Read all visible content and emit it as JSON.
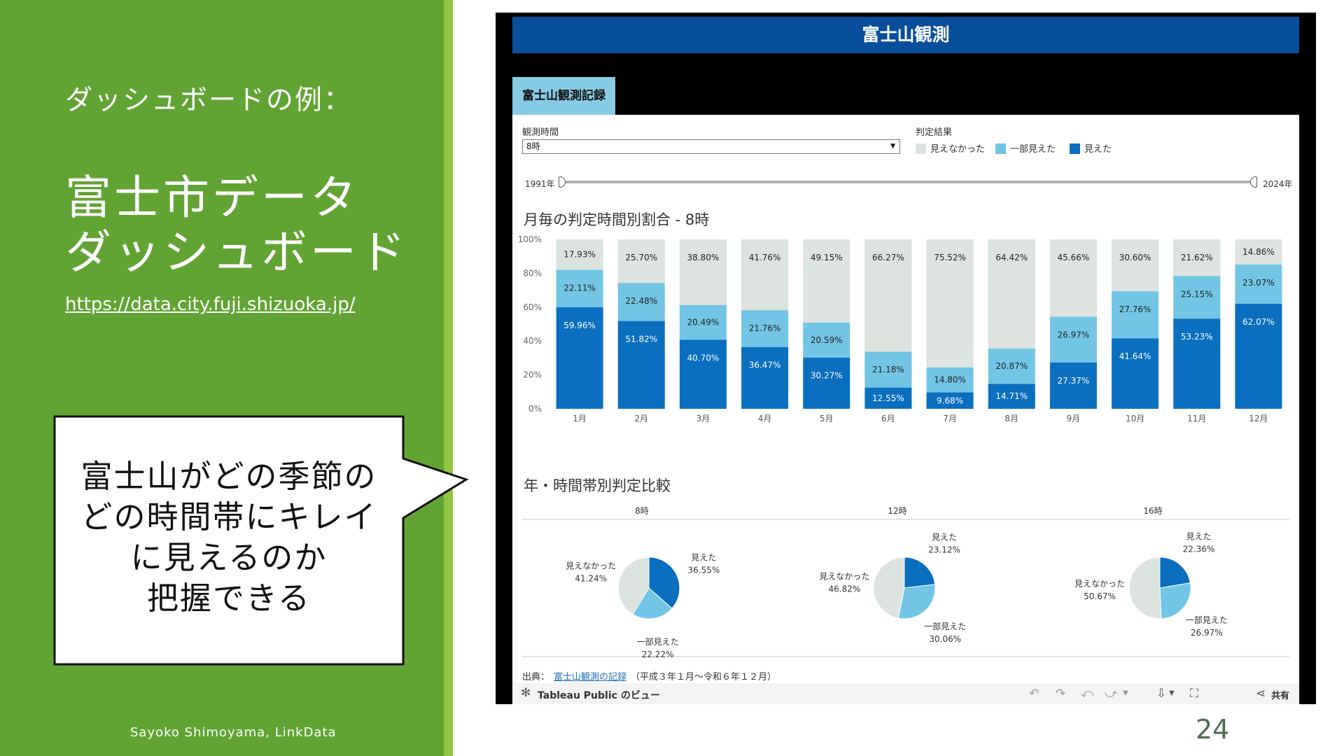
{
  "slide": {
    "subtitle": "ダッシュボードの例：",
    "title_line1": "富士市データ",
    "title_line2": "ダッシュボード",
    "url": "https://data.city.fuji.shizuoka.jp/",
    "callout_lines": [
      "富士山がどの季節の",
      "どの時間帯にキレイ",
      "に見えるのか",
      "把握できる"
    ],
    "author": "Sayoko Shimoyama, LinkData",
    "page_number": "24"
  },
  "dashboard": {
    "header_title": "富士山観測",
    "tab_label": "富士山観測記録",
    "filter_label": "観測時間",
    "filter_value": "8時",
    "legend_title": "判定結果",
    "legend": [
      {
        "label": "見えなかった",
        "color": "#dde3df"
      },
      {
        "label": "一部見えた",
        "color": "#72c5e5"
      },
      {
        "label": "見えた",
        "color": "#0a6fbf"
      }
    ],
    "slider_start": "1991年",
    "slider_end": "2024年",
    "bar_chart_title": "月毎の判定時間別割合 - 8時",
    "pie_section_title": "年・時間帯別判定比較",
    "source_prefix": "出典：",
    "source_link": "富士山観測の記録",
    "source_suffix": "（平成３年１月〜令和６年１２月）",
    "toolbar_label": "Tableau Public のビュー",
    "share_label": "共有"
  },
  "chart_data": [
    {
      "type": "bar",
      "title": "月毎の判定時間別割合 - 8時",
      "stacked": true,
      "categories": [
        "1月",
        "2月",
        "3月",
        "4月",
        "5月",
        "6月",
        "7月",
        "8月",
        "9月",
        "10月",
        "11月",
        "12月"
      ],
      "yticks": [
        "0%",
        "20%",
        "40%",
        "60%",
        "80%",
        "100%"
      ],
      "ylim": [
        0,
        100
      ],
      "series": [
        {
          "name": "見えた",
          "color": "#0a6fbf",
          "values": [
            59.96,
            51.82,
            40.7,
            36.47,
            30.27,
            12.55,
            9.68,
            14.71,
            27.37,
            41.64,
            53.23,
            62.07
          ]
        },
        {
          "name": "一部見えた",
          "color": "#72c5e5",
          "values": [
            22.11,
            22.48,
            20.49,
            21.76,
            20.59,
            21.18,
            14.8,
            20.87,
            26.97,
            27.76,
            25.15,
            23.07
          ]
        },
        {
          "name": "見えなかった",
          "color": "#dde3df",
          "values": [
            17.93,
            25.7,
            38.8,
            41.76,
            49.15,
            66.27,
            75.52,
            64.42,
            45.66,
            30.6,
            21.62,
            14.86
          ]
        }
      ],
      "labels": {
        "見えた": [
          "59.96%",
          "51.82%",
          "40.70%",
          "36.47%",
          "30.27%",
          "12.55%",
          "9.68%",
          "14.71%",
          "27.37%",
          "41.64%",
          "53.23%",
          "62.07%"
        ],
        "一部見えた": [
          "22.11%",
          "22.48%",
          "20.49%",
          "21.76%",
          "20.59%",
          "21.18%",
          "14.80%",
          "20.87%",
          "26.97%",
          "27.76%",
          "25.15%",
          "23.07%"
        ],
        "見えなかった": [
          "17.93%",
          "25.70%",
          "38.80%",
          "41.76%",
          "49.15%",
          "66.27%",
          "75.52%",
          "64.42%",
          "45.66%",
          "30.60%",
          "21.62%",
          "14.86%"
        ]
      }
    },
    {
      "type": "pie",
      "title": "年・時間帯別判定比較",
      "pies": [
        {
          "name": "8時",
          "slices": [
            {
              "label": "見えた",
              "value": 36.55,
              "text": "36.55%",
              "color": "#0a6fbf"
            },
            {
              "label": "一部見えた",
              "value": 22.22,
              "text": "22.22%",
              "color": "#72c5e5"
            },
            {
              "label": "見えなかった",
              "value": 41.24,
              "text": "41.24%",
              "color": "#dde3df"
            }
          ]
        },
        {
          "name": "12時",
          "slices": [
            {
              "label": "見えた",
              "value": 23.12,
              "text": "23.12%",
              "color": "#0a6fbf"
            },
            {
              "label": "一部見えた",
              "value": 30.06,
              "text": "30.06%",
              "color": "#72c5e5"
            },
            {
              "label": "見えなかった",
              "value": 46.82,
              "text": "46.82%",
              "color": "#dde3df"
            }
          ]
        },
        {
          "name": "16時",
          "slices": [
            {
              "label": "見えた",
              "value": 22.36,
              "text": "22.36%",
              "color": "#0a6fbf"
            },
            {
              "label": "一部見えた",
              "value": 26.97,
              "text": "26.97%",
              "color": "#72c5e5"
            },
            {
              "label": "見えなかった",
              "value": 50.67,
              "text": "50.67%",
              "color": "#dde3df"
            }
          ]
        }
      ]
    }
  ]
}
